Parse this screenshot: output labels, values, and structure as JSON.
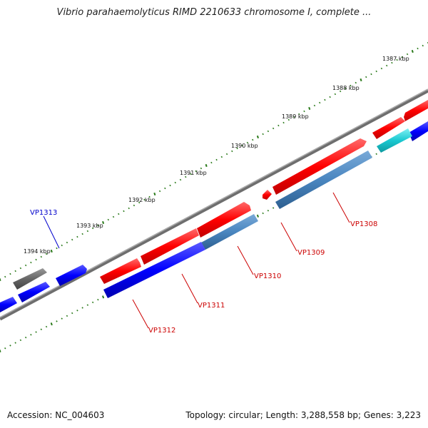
{
  "title": "Vibrio parahaemolyticus RIMD 2210633 chromosome I, complete ...",
  "footer": {
    "accession": "Accession: NC_004603",
    "summary": "Topology: circular; Length: 3,288,558 bp; Genes: 3,223"
  },
  "ticks": [
    {
      "label": "1387 kbp"
    },
    {
      "label": "1388 kbp"
    },
    {
      "label": "1389 kbp"
    },
    {
      "label": "1390 kbp"
    },
    {
      "label": "1391 kbp"
    },
    {
      "label": "1392 kbp"
    },
    {
      "label": "1393 kbp"
    },
    {
      "label": "1394 kbp"
    }
  ],
  "gene_labels": [
    {
      "name": "VP1308",
      "color": "#cc0000"
    },
    {
      "name": "VP1309",
      "color": "#cc0000"
    },
    {
      "name": "VP1310",
      "color": "#cc0000"
    },
    {
      "name": "VP1311",
      "color": "#cc0000"
    },
    {
      "name": "VP1312",
      "color": "#cc0000"
    },
    {
      "name": "VP1313",
      "color": "#0000cc"
    }
  ],
  "colors": {
    "cds_forward": "#ff0000",
    "cds_reverse": "#0000ff",
    "feature_steel": "#4a86c0",
    "feature_cyan": "#19c8d0",
    "feature_gray": "#666666",
    "backbone": "#888888",
    "tick": "#2a7a1a"
  }
}
